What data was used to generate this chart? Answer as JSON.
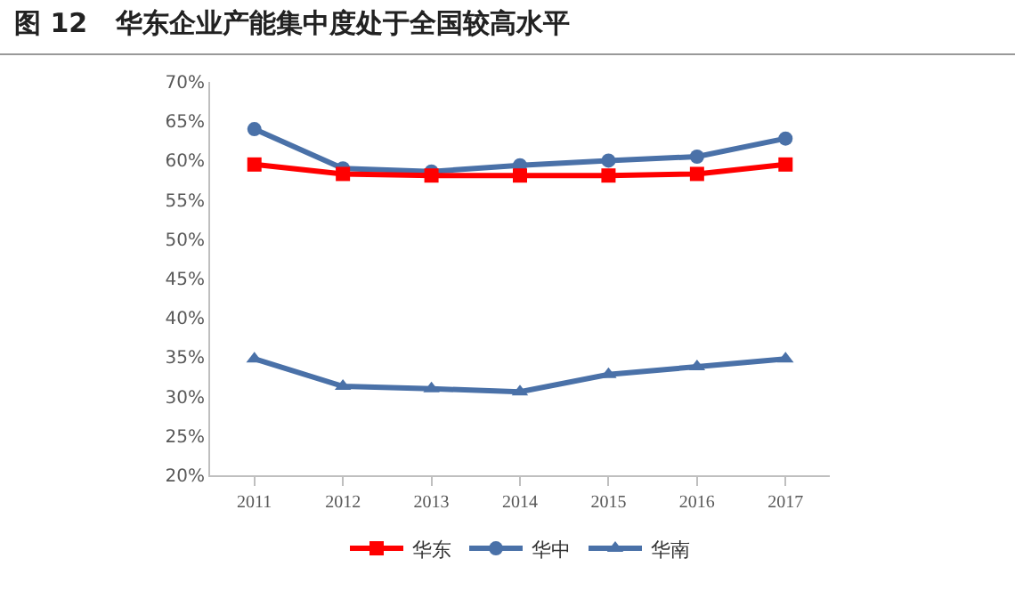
{
  "chart_data": {
    "type": "line",
    "title": "图 12   华东企业产能集中度处于全国较高水平",
    "categories": [
      "2011",
      "2012",
      "2013",
      "2014",
      "2015",
      "2016",
      "2017"
    ],
    "series": [
      {
        "name": "华东",
        "color": "#ff0000",
        "marker": "square",
        "values": [
          59.5,
          58.3,
          58.1,
          58.1,
          58.1,
          58.3,
          59.5
        ]
      },
      {
        "name": "华中",
        "color": "#4a71a8",
        "marker": "circle",
        "values": [
          64.0,
          59.0,
          58.6,
          59.4,
          60.0,
          60.5,
          62.8
        ]
      },
      {
        "name": "华南",
        "color": "#4a71a8",
        "marker": "triangle",
        "values": [
          34.8,
          31.3,
          31.0,
          30.6,
          32.8,
          33.8,
          34.8
        ]
      }
    ],
    "ylim": [
      20,
      70
    ],
    "yticks": [
      {
        "value": 20,
        "label": "20%"
      },
      {
        "value": 25,
        "label": "25%"
      },
      {
        "value": 30,
        "label": "30%"
      },
      {
        "value": 35,
        "label": "35%"
      },
      {
        "value": 40,
        "label": "40%"
      },
      {
        "value": 45,
        "label": "45%"
      },
      {
        "value": 50,
        "label": "50%"
      },
      {
        "value": 55,
        "label": "55%"
      },
      {
        "value": 60,
        "label": "60%"
      },
      {
        "value": 65,
        "label": "65%"
      },
      {
        "value": 70,
        "label": "70%"
      }
    ],
    "grid": false,
    "legend": "bottom",
    "line_style": "solid"
  }
}
